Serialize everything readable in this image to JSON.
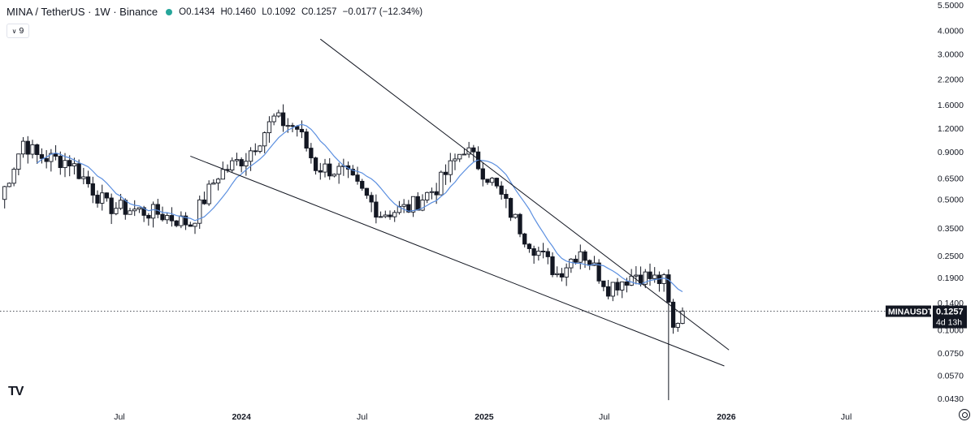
{
  "header": {
    "symbol": "MINA / TetherUS · 1W · Binance",
    "open": "O0.1434",
    "high": "H0.1460",
    "low": "L0.1092",
    "close": "C0.1257",
    "change": "−0.0177 (−12.34%)",
    "ma_length": "9"
  },
  "price_label": {
    "ticker": "MINAUSDT",
    "price": "0.1257",
    "countdown": "4d 13h"
  },
  "logo_text": "TV",
  "colors": {
    "bull": "#131722",
    "bear": "#131722",
    "ma": "#5b8fe0",
    "trendline": "#131722",
    "status_dot": "#26a69a"
  },
  "chart_data": {
    "type": "candlestick",
    "scale": "log",
    "ylim": [
      0.04,
      5.6
    ],
    "xlim": [
      "2023-01-02",
      "2026-11-23"
    ],
    "y_ticks": [
      "5.5000",
      "4.0000",
      "3.0000",
      "2.2000",
      "1.6000",
      "1.2000",
      "0.9000",
      "0.6500",
      "0.5000",
      "0.3500",
      "0.2500",
      "0.1900",
      "0.1400",
      "0.1000",
      "0.0750",
      "0.0570",
      "0.0430"
    ],
    "x_ticks": [
      "Jul",
      "2024",
      "Jul",
      "2025",
      "Jul",
      "2026",
      "Jul"
    ],
    "moving_average": {
      "period": 9
    },
    "last_price": 0.1257,
    "trendlines": [
      {
        "from": [
          "2023-10-16",
          0.85
        ],
        "to": [
          "2025-12-29",
          0.064
        ]
      },
      {
        "from": [
          "2024-04-29",
          3.6
        ],
        "to": [
          "2026-01-05",
          0.078
        ]
      }
    ],
    "anchors": [
      [
        "2023-01-02",
        0.5
      ],
      [
        "2023-02-06",
        1.02
      ],
      [
        "2023-02-27",
        0.85
      ],
      [
        "2023-04-17",
        0.8
      ],
      [
        "2023-06-12",
        0.46
      ],
      [
        "2023-08-28",
        0.42
      ],
      [
        "2023-10-16",
        0.37
      ],
      [
        "2023-11-27",
        0.68
      ],
      [
        "2024-01-08",
        0.85
      ],
      [
        "2024-02-19",
        1.35
      ],
      [
        "2024-03-25",
        1.2
      ],
      [
        "2024-04-22",
        0.75
      ],
      [
        "2024-06-03",
        0.7
      ],
      [
        "2024-07-29",
        0.42
      ],
      [
        "2024-09-09",
        0.45
      ],
      [
        "2024-10-21",
        0.58
      ],
      [
        "2024-12-02",
        0.95
      ],
      [
        "2025-01-13",
        0.62
      ],
      [
        "2025-03-03",
        0.32
      ],
      [
        "2025-04-21",
        0.2
      ],
      [
        "2025-05-26",
        0.27
      ],
      [
        "2025-07-07",
        0.17
      ],
      [
        "2025-08-18",
        0.2
      ],
      [
        "2025-09-29",
        0.18
      ],
      [
        "2025-10-13",
        0.1
      ],
      [
        "2025-10-27",
        0.13
      ]
    ],
    "spike_low": {
      "date": "2025-10-06",
      "value": 0.042
    }
  }
}
